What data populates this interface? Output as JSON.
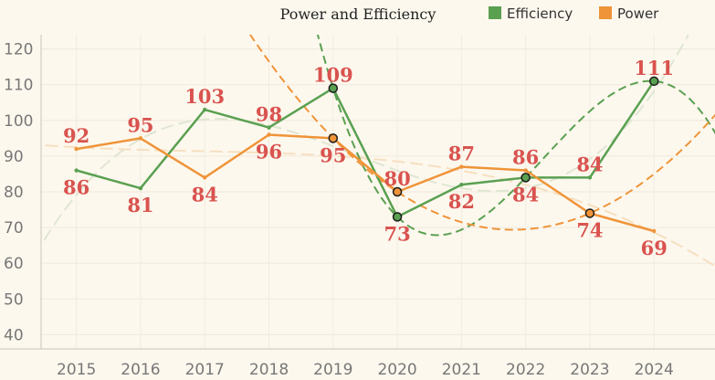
{
  "chart_data": {
    "type": "line",
    "title": "Power and Efficiency",
    "xlabel": "",
    "ylabel": "",
    "x": [
      "2015",
      "2016",
      "2017",
      "2018",
      "2019",
      "2020",
      "2021",
      "2022",
      "2023",
      "2024"
    ],
    "xlim": [
      2014.45,
      2024.95
    ],
    "ylim": [
      36,
      124
    ],
    "yticks": [
      40,
      50,
      60,
      70,
      80,
      90,
      100,
      110,
      120
    ],
    "grid": true,
    "legend_position": "top-right",
    "series": [
      {
        "name": "Efficiency",
        "color": "#5aa051",
        "values": [
          86,
          81,
          103,
          98,
          109,
          73,
          82,
          84,
          84,
          111
        ],
        "highlighted": [
          4,
          5,
          7,
          9
        ]
      },
      {
        "name": "Power",
        "color": "#ef9439",
        "values": [
          92,
          95,
          84,
          96,
          95,
          80,
          87,
          86,
          74,
          69
        ],
        "highlighted": [
          4,
          5,
          8
        ]
      }
    ],
    "trendlines": [
      {
        "series": "Efficiency",
        "style": "dashed",
        "color": "#5aa051"
      },
      {
        "series": "Power",
        "style": "dashed",
        "color": "#ef9439"
      },
      {
        "series": "Efficiency",
        "style": "faint",
        "color": "#dfe6d2"
      },
      {
        "series": "Power",
        "style": "faint",
        "color": "#f6dfc0"
      }
    ]
  }
}
